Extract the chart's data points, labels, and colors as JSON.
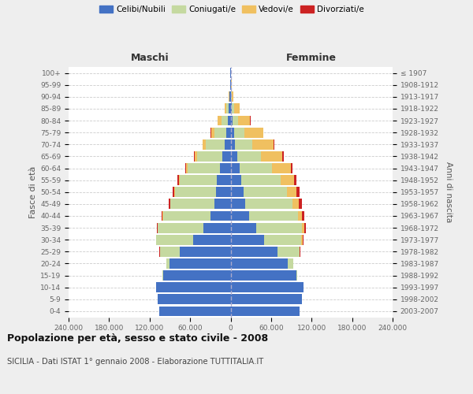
{
  "age_groups": [
    "0-4",
    "5-9",
    "10-14",
    "15-19",
    "20-24",
    "25-29",
    "30-34",
    "35-39",
    "40-44",
    "45-49",
    "50-54",
    "55-59",
    "60-64",
    "65-69",
    "70-74",
    "75-79",
    "80-84",
    "85-89",
    "90-94",
    "95-99",
    "100+"
  ],
  "birth_years": [
    "2003-2007",
    "1998-2002",
    "1993-1997",
    "1988-1992",
    "1983-1987",
    "1978-1982",
    "1973-1977",
    "1968-1972",
    "1963-1967",
    "1958-1962",
    "1953-1957",
    "1948-1952",
    "1943-1947",
    "1938-1942",
    "1933-1937",
    "1928-1932",
    "1923-1927",
    "1918-1922",
    "1913-1917",
    "1908-1912",
    "≤ 1907"
  ],
  "colors": {
    "celibe": "#4472c4",
    "coniugato": "#c5d9a0",
    "vedovo": "#f0c060",
    "divorziato": "#cc2222"
  },
  "maschi": {
    "celibe": [
      106000,
      108000,
      110000,
      100000,
      90000,
      75000,
      55000,
      40000,
      30000,
      24000,
      22000,
      20000,
      16000,
      12000,
      9000,
      6000,
      4000,
      2500,
      1200,
      600,
      200
    ],
    "coniugato": [
      0,
      0,
      0,
      500,
      5000,
      30000,
      55000,
      68000,
      70000,
      65000,
      60000,
      55000,
      48000,
      38000,
      28000,
      18000,
      10000,
      4000,
      1000,
      300,
      100
    ],
    "vedovo": [
      0,
      0,
      0,
      0,
      50,
      100,
      200,
      400,
      600,
      800,
      1200,
      1500,
      2000,
      3000,
      4000,
      5000,
      5000,
      2500,
      800,
      200,
      50
    ],
    "divorziato": [
      0,
      0,
      0,
      0,
      100,
      300,
      600,
      1200,
      1800,
      2000,
      2200,
      1800,
      1200,
      800,
      600,
      400,
      300,
      200,
      100,
      50,
      20
    ]
  },
  "femmine": {
    "celibe": [
      102000,
      106000,
      108000,
      98000,
      85000,
      70000,
      50000,
      38000,
      28000,
      22000,
      19000,
      16000,
      13000,
      10000,
      7000,
      5000,
      3000,
      2000,
      1000,
      500,
      200
    ],
    "coniugato": [
      0,
      0,
      0,
      600,
      8000,
      32000,
      55000,
      68000,
      72000,
      70000,
      65000,
      58000,
      48000,
      35000,
      25000,
      15000,
      8000,
      3000,
      800,
      200,
      80
    ],
    "vedovo": [
      0,
      0,
      0,
      50,
      200,
      700,
      1800,
      3500,
      6000,
      9000,
      14000,
      20000,
      28000,
      32000,
      32000,
      28000,
      18000,
      8000,
      2500,
      600,
      200
    ],
    "divorziato": [
      0,
      0,
      0,
      0,
      150,
      500,
      1200,
      2500,
      3500,
      4200,
      4500,
      4000,
      2800,
      1800,
      1200,
      800,
      500,
      300,
      100,
      50,
      20
    ]
  },
  "xlim": 240000,
  "xtick_vals": [
    -240000,
    -180000,
    -120000,
    -60000,
    0,
    60000,
    120000,
    180000,
    240000
  ],
  "xtick_labels": [
    "240.000",
    "180.000",
    "120.000",
    "60.000",
    "0",
    "60.000",
    "120.000",
    "180.000",
    "240.000"
  ],
  "title": "Popolazione per età, sesso e stato civile - 2008",
  "subtitle": "SICILIA - Dati ISTAT 1° gennaio 2008 - Elaborazione TUTTITALIA.IT",
  "ylabel": "Fasce di età",
  "ylabel2": "Anni di nascita",
  "legend_labels": [
    "Celibi/Nubili",
    "Coniugati/e",
    "Vedovi/e",
    "Divorziati/e"
  ],
  "maschi_label": "Maschi",
  "femmine_label": "Femmine",
  "bg_color": "#eeeeee",
  "plot_bg": "#ffffff",
  "grid_color": "#cccccc",
  "center_line_color": "#aaaacc"
}
